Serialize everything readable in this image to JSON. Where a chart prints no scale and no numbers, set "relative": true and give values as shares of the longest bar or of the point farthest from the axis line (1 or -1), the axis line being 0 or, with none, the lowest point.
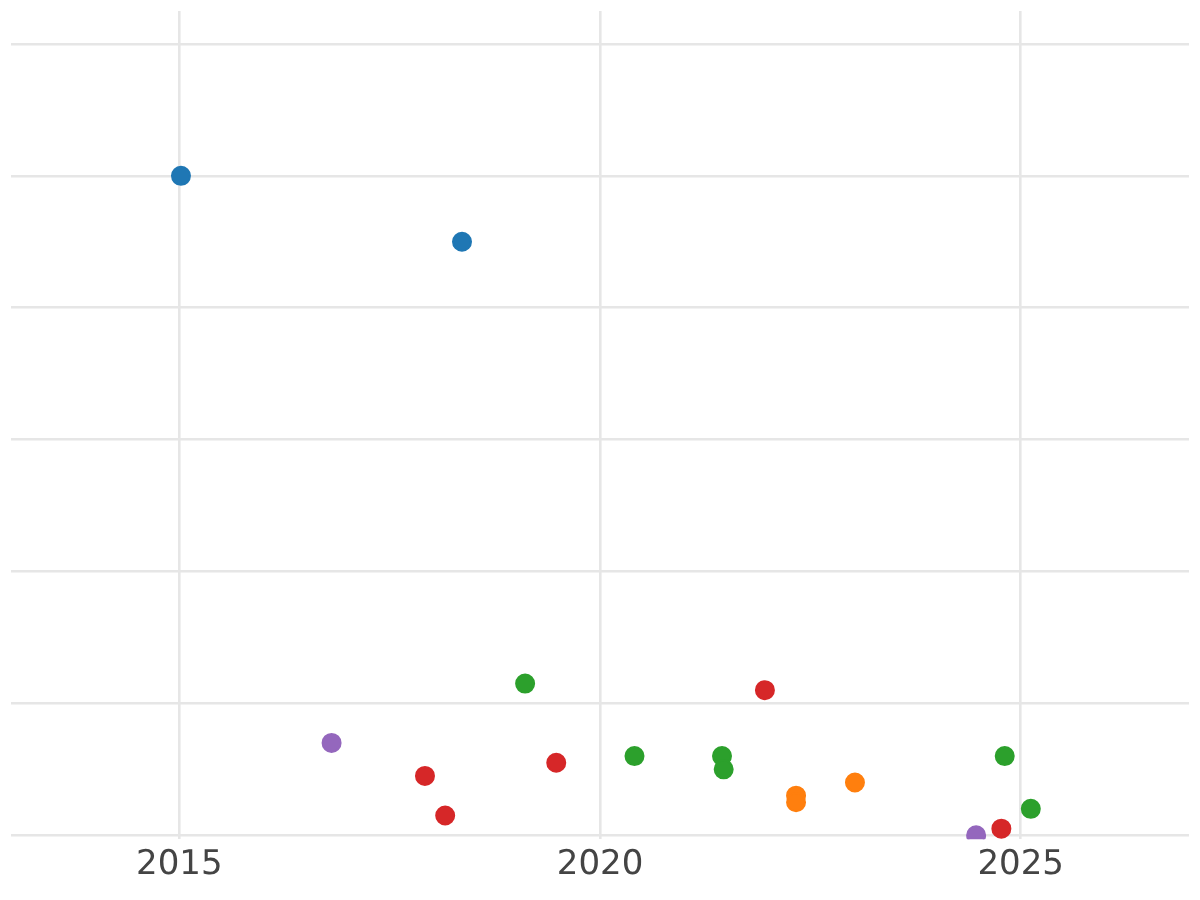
{
  "chart_data": {
    "type": "scatter",
    "relative": true,
    "xlim": [
      2013,
      2027
    ],
    "xticks": [
      2015,
      2020,
      2025
    ],
    "grid": true,
    "legend": false,
    "marker": "circle",
    "series": [
      {
        "color": "#1f77b4",
        "x": [
          2015.02,
          2018.36
        ],
        "values": [
          1.0,
          0.9
        ]
      },
      {
        "color": "#9467bd",
        "x": [
          2016.81,
          2024.47
        ],
        "values": [
          0.14,
          0.0
        ]
      },
      {
        "color": "#d62728",
        "x": [
          2017.92,
          2018.16,
          2019.48,
          2021.96,
          2024.77
        ],
        "values": [
          0.09,
          0.03,
          0.11,
          0.22,
          0.01
        ]
      },
      {
        "color": "#2ca02c",
        "x": [
          2019.11,
          2020.41,
          2021.45,
          2021.47,
          2024.81,
          2025.12
        ],
        "values": [
          0.23,
          0.12,
          0.12,
          0.1,
          0.12,
          0.04
        ]
      },
      {
        "color": "#ff7f0e",
        "x": [
          2022.33,
          2022.33,
          2023.03
        ],
        "values": [
          0.06,
          0.05,
          0.08
        ]
      }
    ]
  }
}
